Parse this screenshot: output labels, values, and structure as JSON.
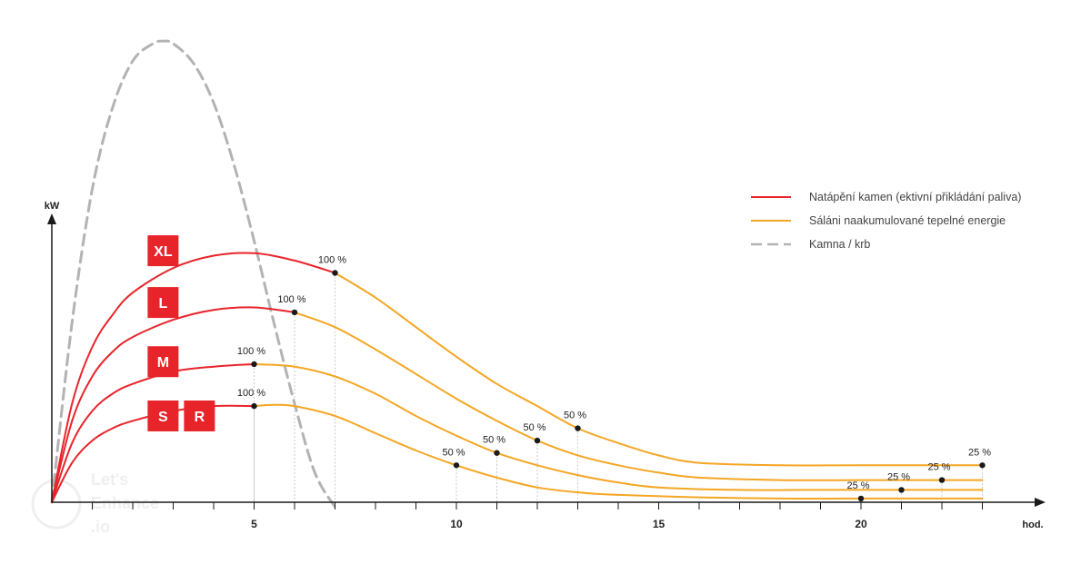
{
  "chart_data": {
    "type": "line",
    "ylabel": "kW",
    "xlabel": "hod.",
    "xlim": [
      0,
      24
    ],
    "x_ticks": [
      1,
      2,
      3,
      4,
      5,
      6,
      7,
      8,
      9,
      10,
      11,
      12,
      13,
      14,
      15,
      16,
      17,
      18,
      19,
      20,
      21,
      22,
      23
    ],
    "x_tick_labels": [
      {
        "x": 5,
        "label": "5"
      },
      {
        "x": 10,
        "label": "10"
      },
      {
        "x": 15,
        "label": "15"
      },
      {
        "x": 20,
        "label": "20"
      }
    ],
    "grid": false,
    "legend_position": "top-right",
    "legend": [
      {
        "label": "Natápění kamen (ektivní přikládání paliva)",
        "style": "solid",
        "color": "#e8242b"
      },
      {
        "label": "Sáláni naakumulované tepelné energie",
        "style": "solid",
        "color": "#f5a623"
      },
      {
        "label": "Kamna / krb",
        "style": "dashed",
        "color": "#b3b3b3"
      }
    ],
    "stove_curve": {
      "x": [
        0,
        0.5,
        1,
        1.5,
        2,
        2.5,
        2.75,
        3,
        3.5,
        4,
        4.5,
        5,
        5.5,
        6,
        6.5,
        7
      ],
      "y": [
        0,
        7.3,
        12.7,
        16.0,
        17.9,
        18.6,
        18.7,
        18.6,
        17.8,
        16.2,
        13.7,
        10.6,
        7.2,
        4.0,
        1.2,
        -0.2
      ]
    },
    "series": [
      {
        "size_labels": [
          "XL"
        ],
        "heating_x": [
          0,
          0.5,
          1,
          1.5,
          2,
          3,
          4,
          5,
          6,
          7
        ],
        "heating_y": [
          0,
          4.0,
          6.3,
          7.6,
          8.5,
          9.5,
          10.0,
          10.1,
          9.8,
          9.3
        ],
        "radiant_x": [
          7,
          8,
          9,
          10,
          11,
          12,
          13,
          14,
          15,
          16,
          18,
          20,
          23
        ],
        "radiant_y": [
          9.3,
          8.3,
          7.1,
          5.9,
          4.8,
          3.9,
          3.0,
          2.4,
          1.9,
          1.6,
          1.5,
          1.5,
          1.5
        ],
        "markers": [
          {
            "x": 7,
            "y": 9.3,
            "label": "100 %"
          },
          {
            "x": 13,
            "y": 3.0,
            "label": "50 %"
          },
          {
            "x": 23,
            "y": 1.5,
            "label": "25 %"
          }
        ]
      },
      {
        "size_labels": [
          "L"
        ],
        "heating_x": [
          0,
          0.5,
          1,
          1.5,
          2,
          3,
          4,
          5,
          6
        ],
        "heating_y": [
          0,
          3.3,
          5.1,
          6.1,
          6.7,
          7.4,
          7.8,
          7.9,
          7.7
        ],
        "radiant_x": [
          6,
          7,
          8,
          9,
          10,
          11,
          12,
          13,
          14,
          15,
          16,
          18,
          20,
          22,
          23
        ],
        "radiant_y": [
          7.7,
          7.1,
          6.2,
          5.2,
          4.2,
          3.3,
          2.5,
          1.9,
          1.5,
          1.2,
          1.0,
          0.9,
          0.9,
          0.9,
          0.9
        ],
        "markers": [
          {
            "x": 6,
            "y": 7.7,
            "label": "100 %"
          },
          {
            "x": 12,
            "y": 2.5,
            "label": "50 %"
          },
          {
            "x": 22,
            "y": 0.9,
            "label": "25 %"
          }
        ]
      },
      {
        "size_labels": [
          "M"
        ],
        "heating_x": [
          0,
          0.5,
          1,
          1.5,
          2,
          3,
          4,
          5
        ],
        "heating_y": [
          0,
          2.4,
          3.7,
          4.4,
          4.8,
          5.3,
          5.5,
          5.6
        ],
        "radiant_x": [
          5,
          6,
          7,
          8,
          9,
          10,
          11,
          12,
          13,
          14,
          15,
          17,
          19,
          21,
          23
        ],
        "radiant_y": [
          5.6,
          5.5,
          5.1,
          4.4,
          3.5,
          2.7,
          2.0,
          1.5,
          1.1,
          0.8,
          0.6,
          0.5,
          0.5,
          0.5,
          0.5
        ],
        "markers": [
          {
            "x": 5,
            "y": 5.6,
            "label": "100 %"
          },
          {
            "x": 11,
            "y": 2.0,
            "label": "50 %"
          },
          {
            "x": 21,
            "y": 0.5,
            "label": "25 %"
          }
        ]
      },
      {
        "size_labels": [
          "S",
          "R"
        ],
        "heating_x": [
          0,
          0.5,
          1,
          1.5,
          2,
          3,
          4,
          5
        ],
        "heating_y": [
          0,
          1.6,
          2.5,
          3.0,
          3.3,
          3.7,
          3.9,
          3.9
        ],
        "radiant_x": [
          5,
          5.5,
          6,
          7,
          8,
          9,
          10,
          11,
          12,
          13,
          14,
          16,
          18,
          20,
          23
        ],
        "radiant_y": [
          3.9,
          3.95,
          3.9,
          3.5,
          2.8,
          2.1,
          1.5,
          1.0,
          0.6,
          0.4,
          0.3,
          0.2,
          0.15,
          0.15,
          0.15
        ],
        "markers": [
          {
            "x": 5,
            "y": 3.9,
            "label": "100 %"
          },
          {
            "x": 10,
            "y": 1.5,
            "label": "50 %"
          },
          {
            "x": 20,
            "y": 0.15,
            "label": "25 %"
          }
        ]
      }
    ]
  },
  "colors": {
    "heating": "#e8242b",
    "radiant": "#f5a623",
    "stove": "#b3b3b3",
    "axis": "#1a1a1a",
    "guide": "#c9c9c9",
    "marker": "#1a1a1a",
    "label_box": "#e8242b"
  },
  "watermark": [
    "Let's",
    "Enhance",
    ".io"
  ]
}
